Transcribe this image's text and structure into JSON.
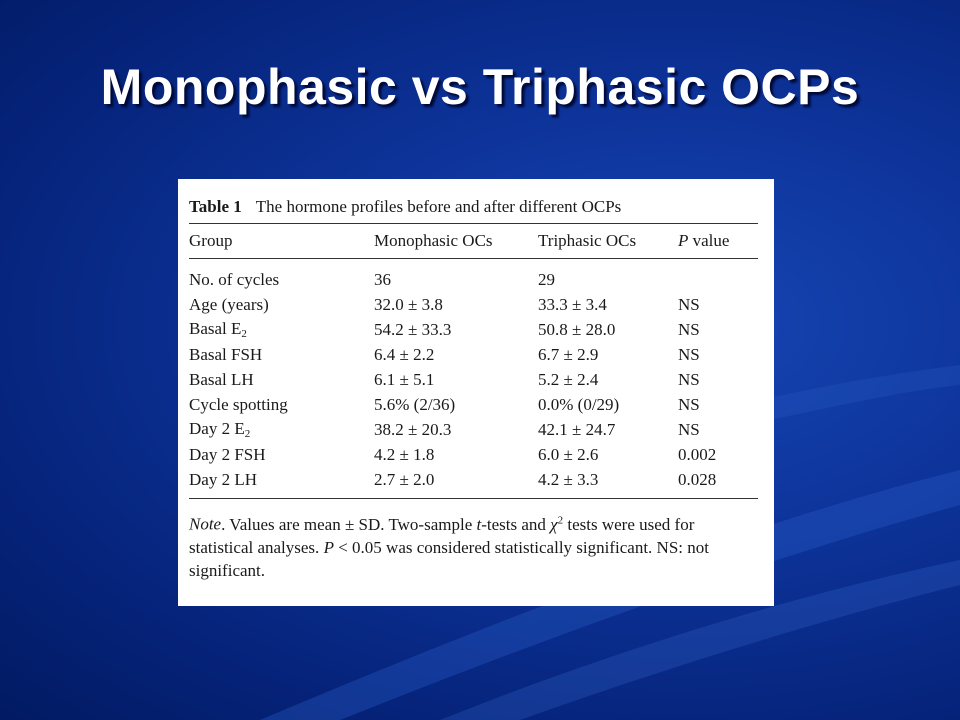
{
  "slide": {
    "title": "Monophasic vs Triphasic OCPs"
  },
  "table": {
    "caption_label": "Table 1",
    "caption_text": "The hormone profiles before and after different OCPs",
    "headers": [
      "Group",
      "Monophasic OCs",
      "Triphasic OCs",
      "P value"
    ],
    "rows": [
      [
        "No. of cycles",
        "36",
        "29",
        ""
      ],
      [
        "Age (years)",
        "32.0 ± 3.8",
        "33.3 ± 3.4",
        "NS"
      ],
      [
        "Basal E2",
        "54.2 ± 33.3",
        "50.8 ± 28.0",
        "NS"
      ],
      [
        "Basal FSH",
        "6.4 ± 2.2",
        "6.7 ± 2.9",
        "NS"
      ],
      [
        "Basal LH",
        "6.1 ± 5.1",
        "5.2 ± 2.4",
        "NS"
      ],
      [
        "Cycle spotting",
        "5.6% (2/36)",
        "0.0% (0/29)",
        "NS"
      ],
      [
        "Day 2 E2",
        "38.2 ± 20.3",
        "42.1 ± 24.7",
        "NS"
      ],
      [
        "Day 2 FSH",
        "4.2 ± 1.8",
        "6.0 ± 2.6",
        "0.002"
      ],
      [
        "Day 2 LH",
        "2.7 ± 2.0",
        "4.2 ± 3.3",
        "0.028"
      ]
    ],
    "note_label": "Note",
    "note_text": ". Values are mean ± SD. Two-sample t-tests and χ2 tests were used for statistical analyses. P < 0.05 was considered statistically significant. NS: not significant."
  }
}
